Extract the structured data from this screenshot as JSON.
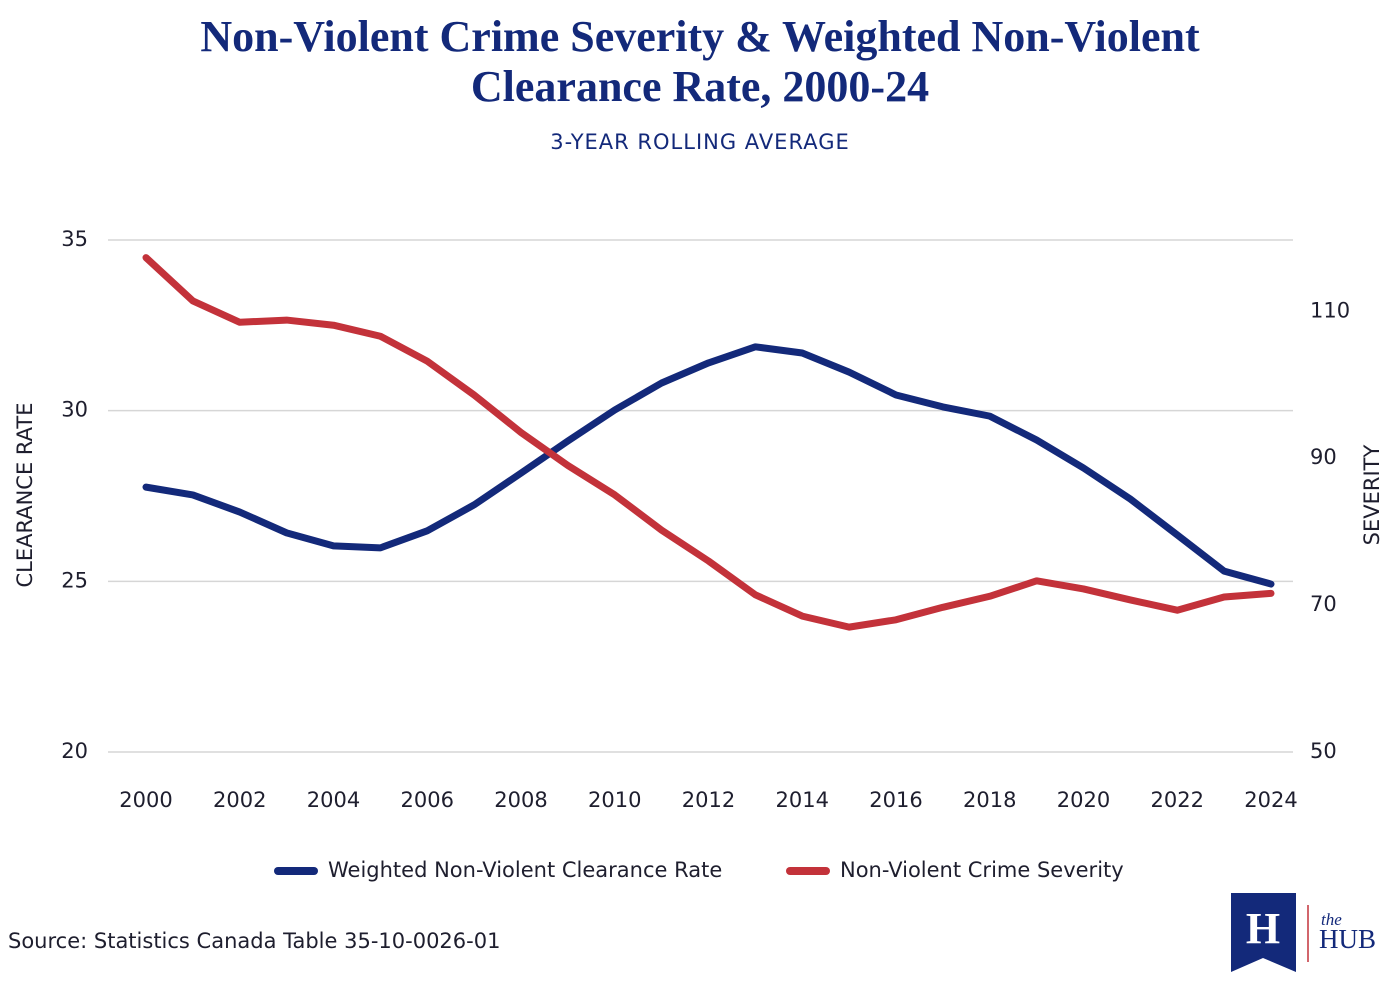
{
  "chart_data": {
    "type": "line",
    "title": "Non-Violent Crime Severity & Weighted Non-Violent Clearance Rate, 2000-24",
    "subtitle": "3-YEAR ROLLING AVERAGE",
    "y_label": "CLEARANCE RATE",
    "y2_label": "SEVERITY",
    "x": [
      2000,
      2001,
      2002,
      2003,
      2004,
      2005,
      2006,
      2007,
      2008,
      2009,
      2010,
      2011,
      2012,
      2013,
      2014,
      2015,
      2016,
      2017,
      2018,
      2019,
      2020,
      2021,
      2022,
      2023,
      2024
    ],
    "xlim": [
      2000,
      2024
    ],
    "xticks": [
      2000,
      2002,
      2004,
      2006,
      2008,
      2010,
      2012,
      2014,
      2016,
      2018,
      2020,
      2022,
      2024
    ],
    "ylim": [
      20,
      35
    ],
    "yticks": [
      20,
      25,
      30,
      35
    ],
    "y2lim": [
      50,
      119.7
    ],
    "y2ticks": [
      50,
      70,
      90,
      110
    ],
    "grid": true,
    "legend": "bottom",
    "series": [
      {
        "name": "Weighted Non-Violent Clearance Rate",
        "color": "#13297a",
        "values": [
          27.76,
          27.53,
          27.03,
          26.42,
          26.04,
          25.98,
          26.48,
          27.24,
          28.17,
          29.11,
          30.02,
          30.81,
          31.4,
          31.87,
          31.69,
          31.13,
          30.46,
          30.11,
          29.84,
          29.14,
          28.32,
          27.41,
          26.36,
          25.3,
          24.92
        ]
      },
      {
        "name": "Non-Violent Crime Severity",
        "color": "#c3323a",
        "axis": "y2",
        "values": [
          117.3,
          111.4,
          108.5,
          108.8,
          108.1,
          106.6,
          103.2,
          98.6,
          93.5,
          89.0,
          85.0,
          80.2,
          76.0,
          71.4,
          68.5,
          67.0,
          68.0,
          69.7,
          71.2,
          73.3,
          72.2,
          70.7,
          69.3,
          71.1,
          71.6
        ]
      }
    ],
    "source": "Source: Statistics Canada Table 35-10-0026-01"
  },
  "logo": {
    "mark": "H",
    "the": "the",
    "name": "HUB"
  }
}
